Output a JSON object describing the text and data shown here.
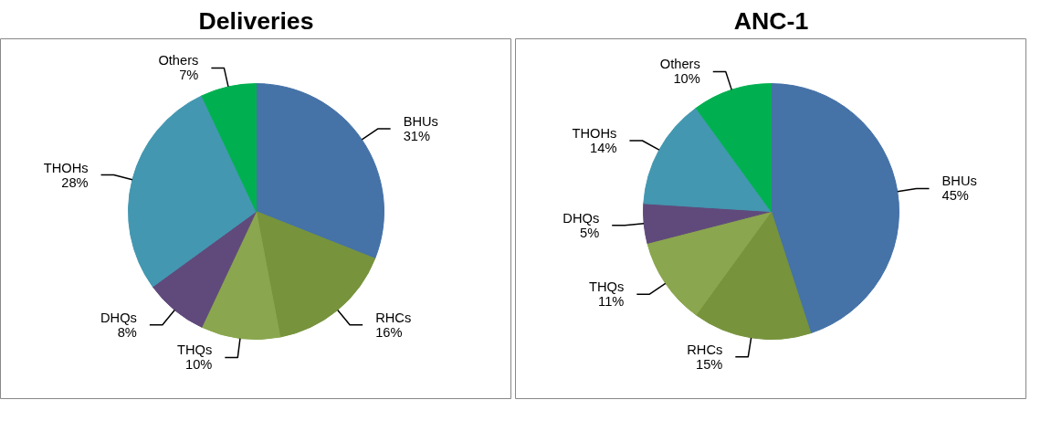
{
  "chart_data": [
    {
      "type": "pie",
      "title": "Deliveries",
      "categories": [
        "BHUs",
        "RHCs",
        "THQs",
        "DHQs",
        "THOHs",
        "Others"
      ],
      "values": [
        31,
        16,
        10,
        8,
        28,
        7
      ],
      "value_labels": [
        "31%",
        "16%",
        "10%",
        "8%",
        "28%",
        "7%"
      ],
      "colors": [
        "#4572a7",
        "#77933c",
        "#8aa64e",
        "#604a7b",
        "#4397b0",
        "#00b050"
      ]
    },
    {
      "type": "pie",
      "title": "ANC-1",
      "categories": [
        "BHUs",
        "RHCs",
        "THQs",
        "DHQs",
        "THOHs",
        "Others"
      ],
      "values": [
        45,
        15,
        11,
        5,
        14,
        10
      ],
      "value_labels": [
        "45%",
        "15%",
        "11%",
        "5%",
        "14%",
        "10%"
      ],
      "colors": [
        "#4572a7",
        "#77933c",
        "#8aa64e",
        "#604a7b",
        "#4397b0",
        "#00b050"
      ]
    }
  ]
}
